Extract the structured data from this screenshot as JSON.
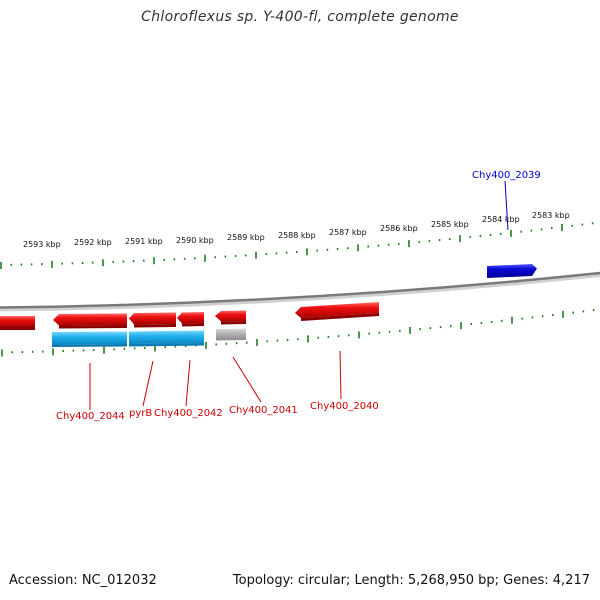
{
  "title": "Chloroflexus sp. Y-400-fl, complete genome",
  "footer": {
    "accession": "Accession: NC_012032",
    "summary": "Topology: circular; Length: 5,268,950 bp; Genes: 4,217"
  },
  "colors": {
    "forward_gene": "#0a0ad8",
    "reverse_gene": "#e0101a",
    "cds_blue": "#22b2ee",
    "pseudo_gray": "#b4b4b4",
    "ticks": "#1e7d1e",
    "backbone": "#888888",
    "label_red": "#cc0000",
    "label_blue": "#0000cc"
  },
  "scale_labels": [
    "2593 kbp",
    "2592 kbp",
    "2591 kbp",
    "2590 kbp",
    "2589 kbp",
    "2588 kbp",
    "2587 kbp",
    "2586 kbp",
    "2585 kbp",
    "2584 kbp",
    "2583 kbp"
  ],
  "gene_labels": [
    {
      "id": "chy2044",
      "text": "Chy400_2044",
      "color": "red"
    },
    {
      "id": "pyrb",
      "text": "pyrB",
      "color": "red"
    },
    {
      "id": "chy2042",
      "text": "Chy400_2042",
      "color": "red"
    },
    {
      "id": "chy2041",
      "text": "Chy400_2041",
      "color": "red"
    },
    {
      "id": "chy2040",
      "text": "Chy400_2040",
      "color": "red"
    },
    {
      "id": "chy2039",
      "text": "Chy400_2039",
      "color": "blue"
    }
  ]
}
